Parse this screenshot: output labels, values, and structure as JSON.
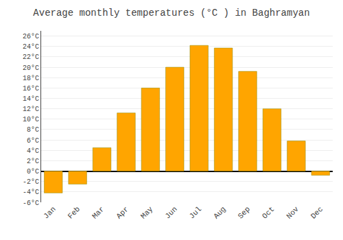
{
  "chart_data": {
    "type": "bar",
    "title": "Average monthly temperatures (°C ) in Baghramyan",
    "categories": [
      "Jan",
      "Feb",
      "Mar",
      "Apr",
      "May",
      "Jun",
      "Jul",
      "Aug",
      "Sep",
      "Oct",
      "Nov",
      "Dec"
    ],
    "values": [
      -4.2,
      -2.5,
      4.5,
      11.2,
      16.0,
      20.0,
      24.2,
      23.7,
      19.2,
      12.0,
      5.8,
      -0.8
    ],
    "color": "#FFA500",
    "ylim": [
      -6,
      27
    ],
    "yticks": [
      {
        "value": -6,
        "label": "-6°C"
      },
      {
        "value": -4,
        "label": "-4°C"
      },
      {
        "value": -2,
        "label": "-2°C"
      },
      {
        "value": 0,
        "label": "0°C"
      },
      {
        "value": 2,
        "label": "2°C"
      },
      {
        "value": 4,
        "label": "4°C"
      },
      {
        "value": 6,
        "label": "6°C"
      },
      {
        "value": 8,
        "label": "8°C"
      },
      {
        "value": 10,
        "label": "10°C"
      },
      {
        "value": 12,
        "label": "12°C"
      },
      {
        "value": 14,
        "label": "14°C"
      },
      {
        "value": 16,
        "label": "16°C"
      },
      {
        "value": 18,
        "label": "18°C"
      },
      {
        "value": 20,
        "label": "20°C"
      },
      {
        "value": 22,
        "label": "22°C"
      },
      {
        "value": 24,
        "label": "24°C"
      },
      {
        "value": 26,
        "label": "26°C"
      }
    ],
    "grid": true
  }
}
